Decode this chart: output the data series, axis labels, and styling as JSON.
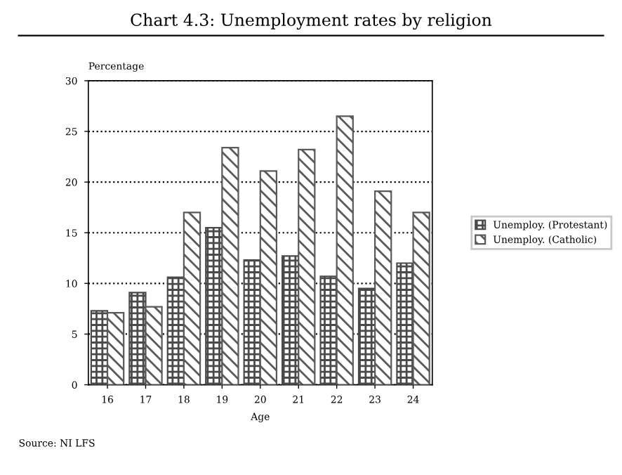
{
  "chart_data": {
    "type": "bar",
    "title": "Chart 4.3: Unemployment rates by religion",
    "ylabel": "Percentage",
    "xlabel": "Age",
    "categories": [
      "16",
      "17",
      "18",
      "19",
      "20",
      "21",
      "22",
      "23",
      "24"
    ],
    "series": [
      {
        "name": "Unemploy. (Protestant)",
        "color": "#4a4a4a",
        "values": [
          7.3,
          9.1,
          10.6,
          15.5,
          12.3,
          12.7,
          10.7,
          9.5,
          12.0
        ]
      },
      {
        "name": "Unemploy. (Catholic)",
        "color": "#5a5a5a",
        "values": [
          7.1,
          7.7,
          17.0,
          23.4,
          21.1,
          23.2,
          26.5,
          19.1,
          17.0
        ]
      }
    ],
    "ylim": [
      0,
      30
    ],
    "yticks": [
      0,
      5,
      10,
      15,
      20,
      25,
      30
    ],
    "grid": "y",
    "legend": "right",
    "annotations": [
      "Source: NI LFS"
    ]
  }
}
